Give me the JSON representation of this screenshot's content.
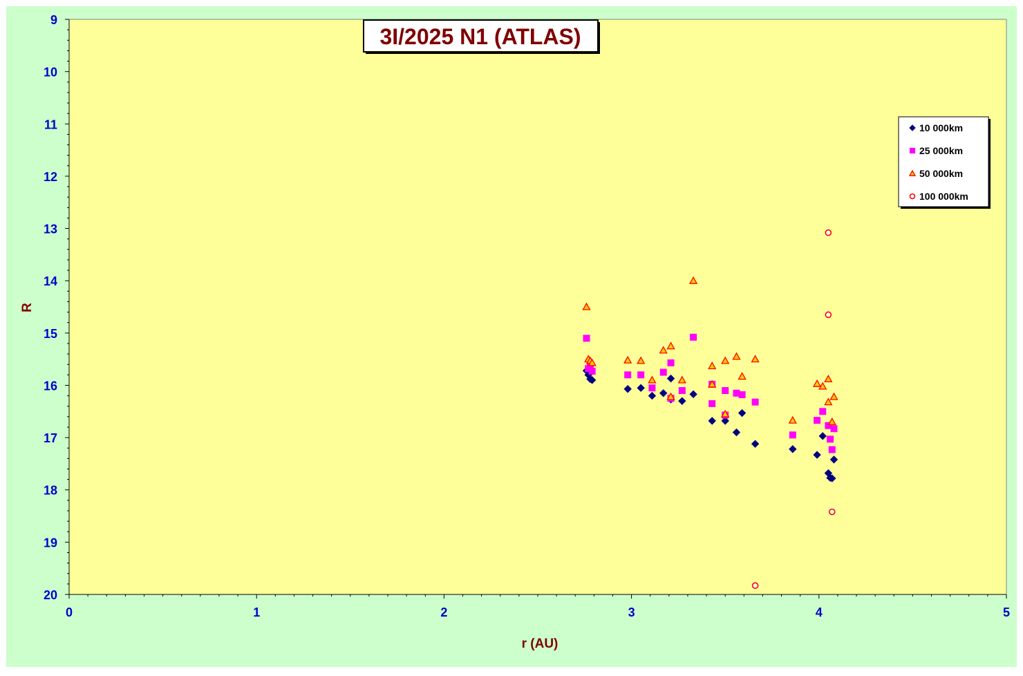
{
  "chart_data": {
    "type": "scatter",
    "title": "3I/2025 N1 (ATLAS)",
    "xlabel": "r (AU)",
    "ylabel": "R",
    "xlim": [
      0,
      5
    ],
    "ylim": [
      9,
      20
    ],
    "y_inverted": true,
    "x_ticks": [
      "0",
      "1",
      "2",
      "3",
      "4",
      "5"
    ],
    "y_ticks": [
      "9",
      "10",
      "11",
      "12",
      "13",
      "14",
      "15",
      "16",
      "17",
      "18",
      "19",
      "20"
    ],
    "grid": false,
    "legend_position": "top-right",
    "colors": {
      "outer_background": "#ccffcc",
      "plot_background": "#ffff99",
      "title_text": "#800000",
      "axis_title": "#800000",
      "tick_labels": "#0000cc"
    },
    "series": [
      {
        "name": "10 000km",
        "marker": "diamond",
        "color": "#000080",
        "points": [
          [
            2.76,
            15.72
          ],
          [
            2.77,
            15.8
          ],
          [
            2.78,
            15.88
          ],
          [
            2.79,
            15.9
          ],
          [
            2.98,
            16.07
          ],
          [
            3.05,
            16.05
          ],
          [
            3.11,
            16.2
          ],
          [
            3.17,
            16.15
          ],
          [
            3.21,
            15.87
          ],
          [
            3.21,
            16.27
          ],
          [
            3.27,
            16.3
          ],
          [
            3.33,
            16.17
          ],
          [
            3.43,
            16.68
          ],
          [
            3.5,
            16.68
          ],
          [
            3.56,
            16.9
          ],
          [
            3.59,
            16.53
          ],
          [
            3.66,
            17.12
          ],
          [
            3.86,
            17.22
          ],
          [
            3.99,
            17.33
          ],
          [
            4.02,
            16.97
          ],
          [
            4.05,
            17.68
          ],
          [
            4.06,
            17.77
          ],
          [
            4.07,
            17.78
          ],
          [
            4.08,
            17.42
          ]
        ]
      },
      {
        "name": "25 000km",
        "marker": "square",
        "color": "#ff00ff",
        "points": [
          [
            2.76,
            15.1
          ],
          [
            2.77,
            15.68
          ],
          [
            2.78,
            15.63
          ],
          [
            2.79,
            15.73
          ],
          [
            2.98,
            15.8
          ],
          [
            3.05,
            15.8
          ],
          [
            3.11,
            16.05
          ],
          [
            3.17,
            15.75
          ],
          [
            3.21,
            15.57
          ],
          [
            3.21,
            16.25
          ],
          [
            3.27,
            16.1
          ],
          [
            3.33,
            15.08
          ],
          [
            3.43,
            15.98
          ],
          [
            3.43,
            16.35
          ],
          [
            3.5,
            16.1
          ],
          [
            3.5,
            16.57
          ],
          [
            3.56,
            16.15
          ],
          [
            3.59,
            16.18
          ],
          [
            3.66,
            16.32
          ],
          [
            3.86,
            16.95
          ],
          [
            3.99,
            16.67
          ],
          [
            4.02,
            16.5
          ],
          [
            4.05,
            16.77
          ],
          [
            4.06,
            17.03
          ],
          [
            4.07,
            17.23
          ],
          [
            4.08,
            16.83
          ]
        ]
      },
      {
        "name": "50 000km",
        "marker": "triangle",
        "color": "#ffcc00",
        "stroke": "#ff0000",
        "points": [
          [
            2.76,
            14.5
          ],
          [
            2.77,
            15.5
          ],
          [
            2.78,
            15.53
          ],
          [
            2.79,
            15.57
          ],
          [
            2.98,
            15.52
          ],
          [
            3.05,
            15.53
          ],
          [
            3.11,
            15.9
          ],
          [
            3.17,
            15.33
          ],
          [
            3.21,
            15.25
          ],
          [
            3.21,
            16.22
          ],
          [
            3.27,
            15.9
          ],
          [
            3.33,
            14.0
          ],
          [
            3.43,
            15.63
          ],
          [
            3.43,
            15.98
          ],
          [
            3.5,
            15.53
          ],
          [
            3.5,
            16.55
          ],
          [
            3.56,
            15.45
          ],
          [
            3.59,
            15.83
          ],
          [
            3.66,
            15.5
          ],
          [
            3.86,
            16.67
          ],
          [
            3.99,
            15.97
          ],
          [
            4.02,
            16.02
          ],
          [
            4.05,
            15.88
          ],
          [
            4.05,
            16.32
          ],
          [
            4.07,
            16.7
          ],
          [
            4.08,
            16.22
          ]
        ]
      },
      {
        "name": "100 000km",
        "marker": "circle",
        "color": "#ff0000",
        "points": [
          [
            3.66,
            19.83
          ],
          [
            4.05,
            13.08
          ],
          [
            4.05,
            14.65
          ],
          [
            4.07,
            18.42
          ]
        ]
      }
    ]
  }
}
